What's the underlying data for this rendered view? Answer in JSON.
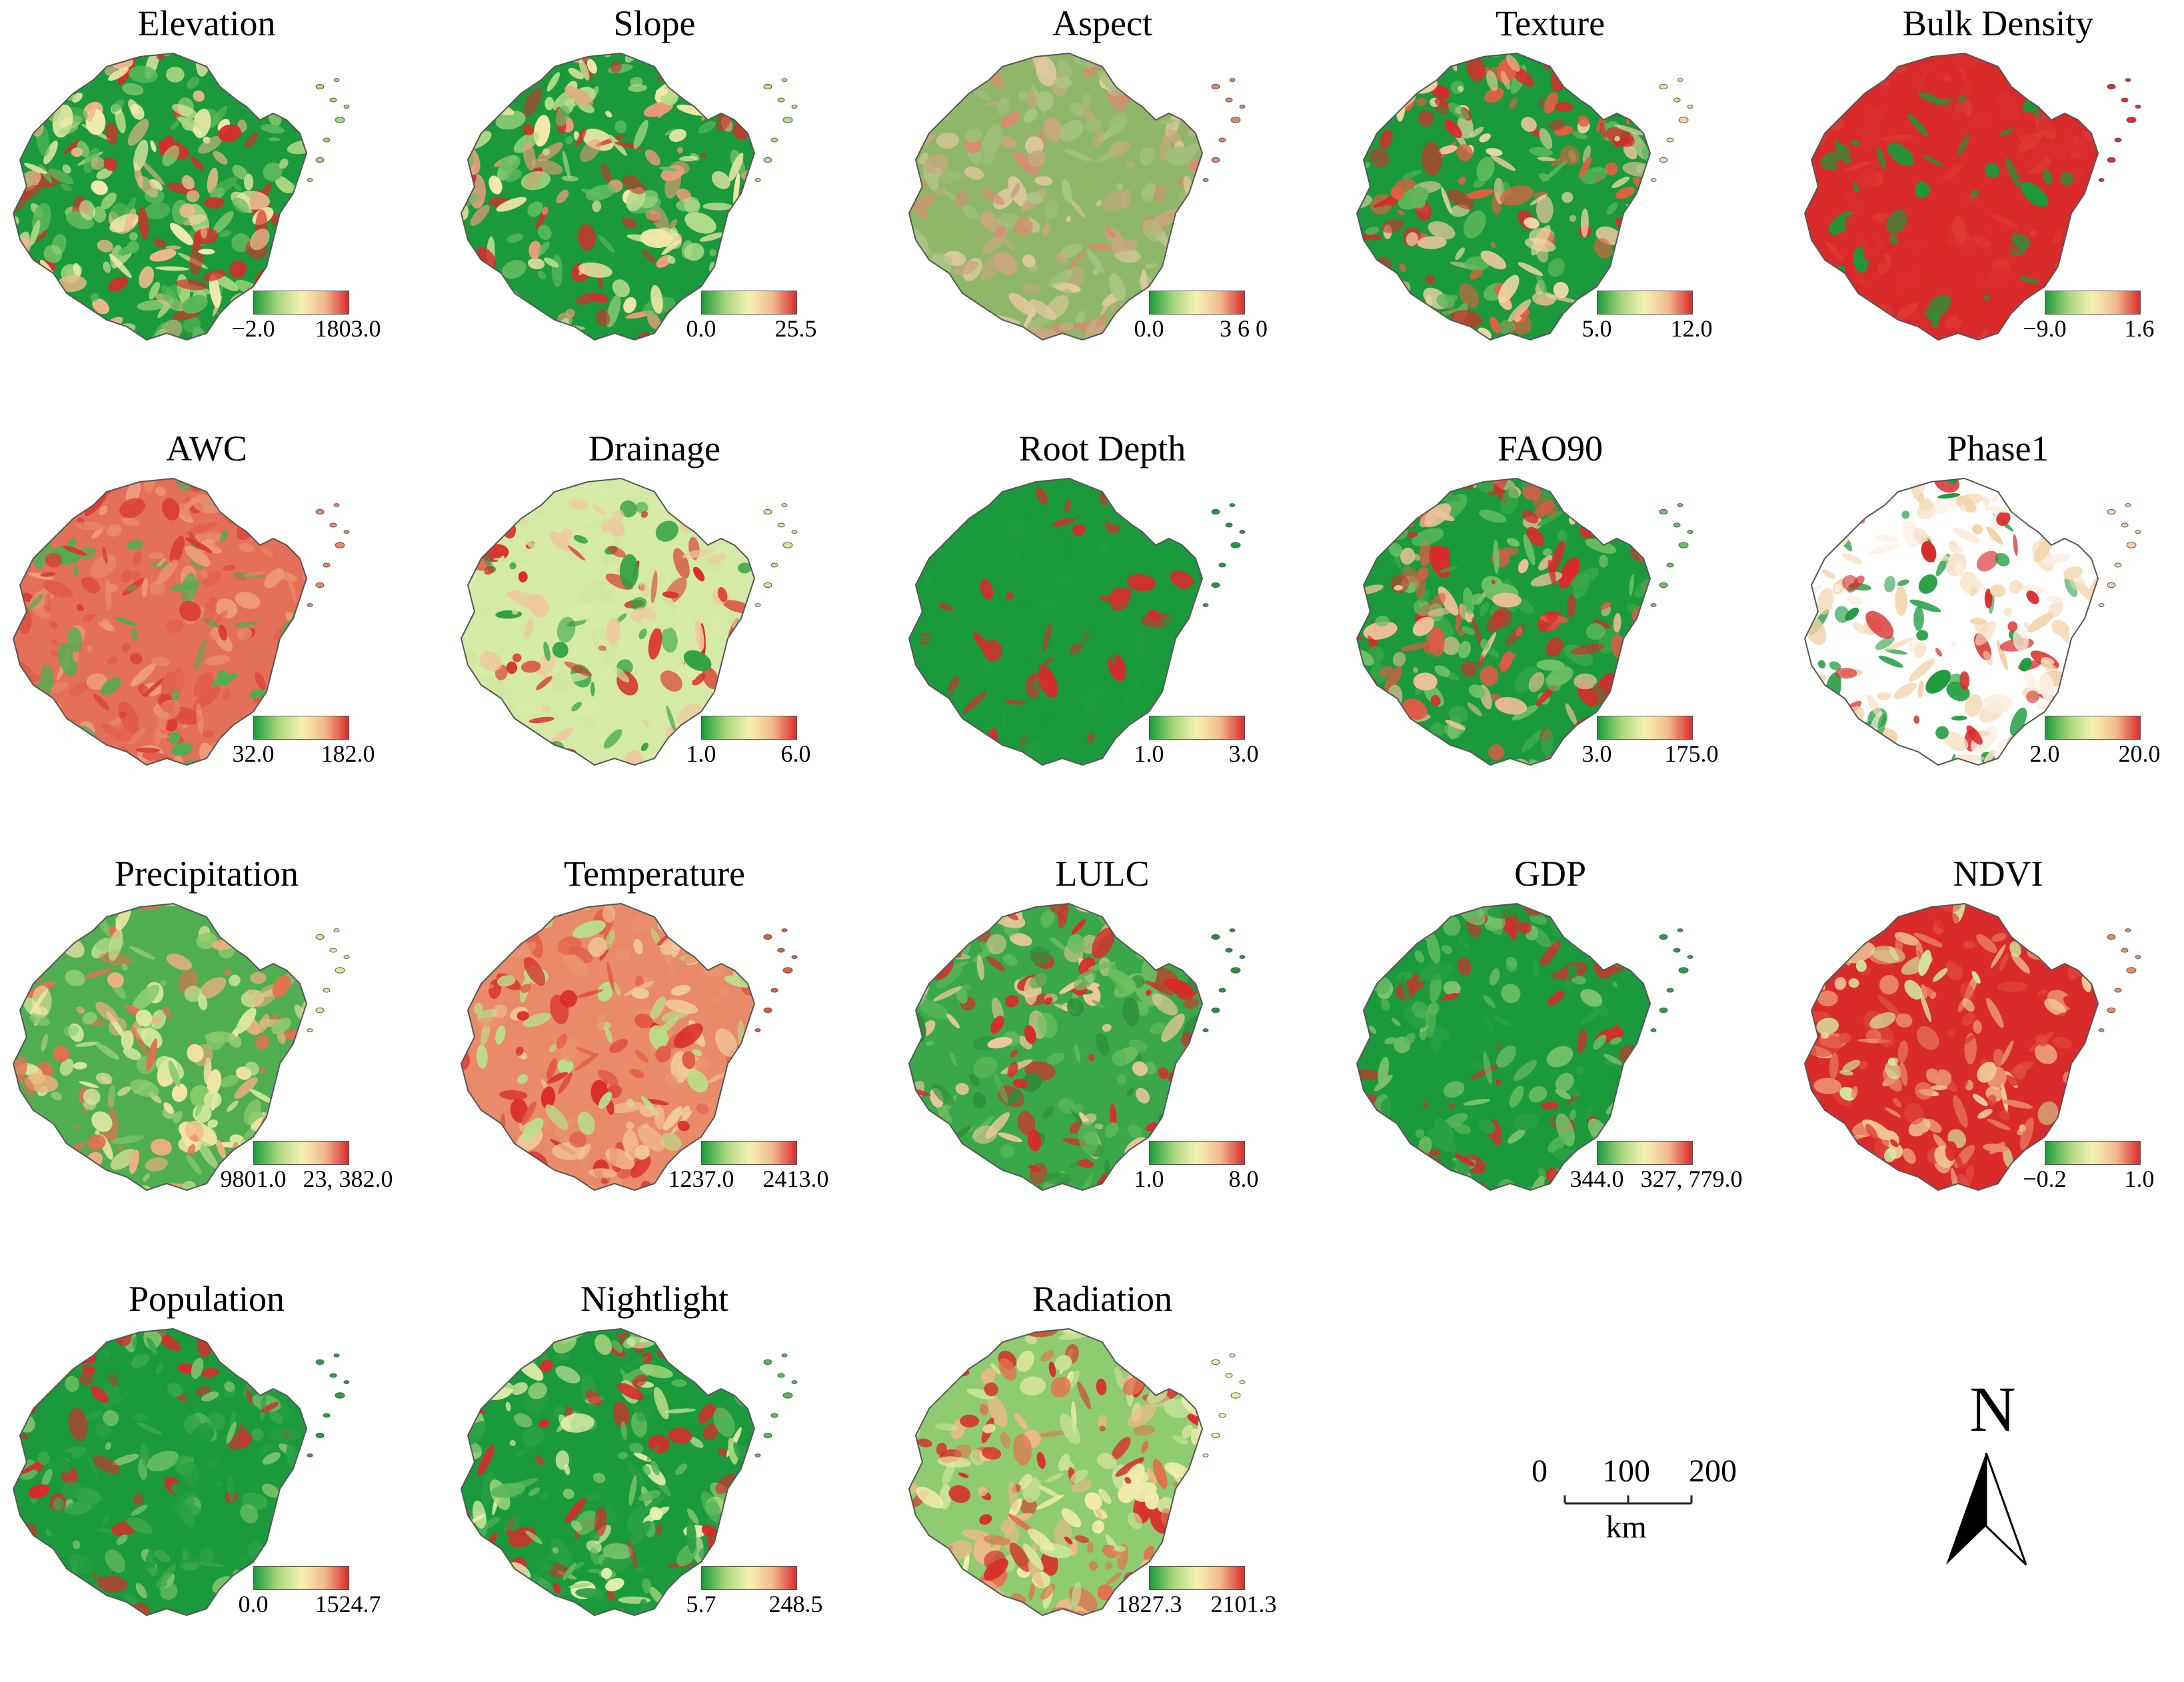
{
  "panels": [
    {
      "title": "Elevation",
      "min": "−2.0",
      "max": "1803.0",
      "fill": "elev",
      "colors": [
        "#1a9a3c",
        "#59b85a",
        "#a7d67c",
        "#f2ecae",
        "#f1b98c",
        "#d92b2b"
      ]
    },
    {
      "title": "Slope",
      "min": "0.0",
      "max": "25.5",
      "fill": "slope",
      "colors": [
        "#1a9a3c",
        "#67bd63",
        "#b6dd8a",
        "#f4e9ab",
        "#ee9c7b",
        "#d92b2b"
      ]
    },
    {
      "title": "Aspect",
      "min": "0.0",
      "max": "3 6 0",
      "fill": "aspect",
      "colors": [
        "#8fb76a",
        "#c9a77f",
        "#d98a72",
        "#a9c585",
        "#e4c9a2",
        "#9fbf7b"
      ]
    },
    {
      "title": "Texture",
      "min": "5.0",
      "max": "12.0",
      "fill": "texture",
      "colors": [
        "#1a9a3c",
        "#5cb85b",
        "#f3d9a9",
        "#f0c8a0",
        "#e26040",
        "#d92b2b"
      ]
    },
    {
      "title": "Bulk Density",
      "min": "−9.0",
      "max": "1.6",
      "fill": "bulk",
      "colors": [
        "#d92b2b",
        "#d92b2b",
        "#da3030",
        "#dc3a35",
        "#1a9a3c",
        "#d92b2b"
      ]
    },
    {
      "title": "AWC",
      "min": "32.0",
      "max": "182.0",
      "fill": "awc",
      "colors": [
        "#e57059",
        "#e25b4a",
        "#e98a6a",
        "#d93a35",
        "#4fae52",
        "#ef9d7a"
      ]
    },
    {
      "title": "Drainage",
      "min": "1.0",
      "max": "6.0",
      "fill": "drainage",
      "colors": [
        "#d5eaa6",
        "#d8eba8",
        "#cfe79f",
        "#2f9f42",
        "#f0c89f",
        "#d92b2b"
      ]
    },
    {
      "title": "Root Depth",
      "min": "1.0",
      "max": "3.0",
      "fill": "root",
      "colors": [
        "#1a9a3c",
        "#1c9b3d",
        "#1f9c3e",
        "#1a9a3c",
        "#d92b2b",
        "#1a9a3c"
      ]
    },
    {
      "title": "FAO90",
      "min": "3.0",
      "max": "175.0",
      "fill": "fao",
      "colors": [
        "#1a9a3c",
        "#3aa84a",
        "#6fc165",
        "#e35a45",
        "#d92b2b",
        "#f0c09a"
      ]
    },
    {
      "title": "Phase1",
      "min": "2.0",
      "max": "20.0",
      "fill": "phase",
      "colors": [
        "#ffffff",
        "#fbeee0",
        "#f3d2a9",
        "#d92b2b",
        "#1a9a3c",
        "#f6dcbc"
      ]
    },
    {
      "title": "Precipitation",
      "min": "9801.0",
      "max": "23, 382.0",
      "fill": "precip",
      "colors": [
        "#4fae52",
        "#8fcb70",
        "#d6ea9f",
        "#f5e6a8",
        "#f0b080",
        "#e3704f"
      ]
    },
    {
      "title": "Temperature",
      "min": "1237.0",
      "max": "2413.0",
      "fill": "temp",
      "colors": [
        "#e98a6a",
        "#ea9470",
        "#e25a47",
        "#d92b2b",
        "#f2c89b",
        "#b9de8a"
      ]
    },
    {
      "title": "LULC",
      "min": "1.0",
      "max": "8.0",
      "fill": "lulc",
      "colors": [
        "#3aa84a",
        "#5cb85b",
        "#2d8f3b",
        "#d92b2b",
        "#f0c89f",
        "#6fbf62"
      ]
    },
    {
      "title": "GDP",
      "min": "344.0",
      "max": "327, 779.0",
      "fill": "gdp",
      "colors": [
        "#1a9a3c",
        "#1b9a3c",
        "#2a9f45",
        "#5cb85b",
        "#7cc26c",
        "#d92b2b"
      ]
    },
    {
      "title": "NDVI",
      "min": "−0.2",
      "max": "1.0",
      "fill": "ndvi",
      "colors": [
        "#d92b2b",
        "#e04a3e",
        "#e98a6a",
        "#f2c89b",
        "#d0e8a0",
        "#d92b2b"
      ]
    },
    {
      "title": "Population",
      "min": "0.0",
      "max": "1524.7",
      "fill": "pop",
      "colors": [
        "#1a9a3c",
        "#1c9b3d",
        "#2a9f45",
        "#3aa84a",
        "#7cc26c",
        "#d92b2b"
      ]
    },
    {
      "title": "Nightlight",
      "min": "5.7",
      "max": "248.5",
      "fill": "night",
      "colors": [
        "#1a9a3c",
        "#2a9f45",
        "#5cb85b",
        "#a7d67c",
        "#e8f0b0",
        "#d92b2b"
      ]
    },
    {
      "title": "Radiation",
      "min": "1827.3",
      "max": "2101.3",
      "fill": "rad",
      "colors": [
        "#8fcb70",
        "#c7e39a",
        "#f2ecae",
        "#f1b98c",
        "#e3704f",
        "#d92b2b"
      ]
    }
  ],
  "legend_ramp": [
    "#1a9a3c",
    "#a7d67c",
    "#f7f2b2",
    "#f1b98c",
    "#d92b2b"
  ],
  "scalebar": {
    "labels": [
      "0",
      "100",
      "200"
    ],
    "unit": "km"
  },
  "north_arrow": {
    "label": "N"
  },
  "outline_color": "#555555"
}
